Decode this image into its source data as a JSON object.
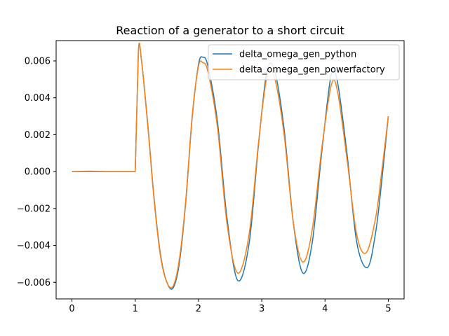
{
  "chart_data": {
    "type": "line",
    "title": "Reaction of a generator to a short circuit",
    "xlabel": "",
    "ylabel": "",
    "xlim": [
      -0.25,
      5.25
    ],
    "ylim": [
      -0.0069,
      0.0071
    ],
    "xticks": [
      0,
      1,
      2,
      3,
      4,
      5
    ],
    "xtick_labels": [
      "0",
      "1",
      "2",
      "3",
      "4",
      "5"
    ],
    "yticks": [
      -0.006,
      -0.004,
      -0.002,
      0.0,
      0.002,
      0.004,
      0.006
    ],
    "ytick_labels": [
      "−0.006",
      "−0.004",
      "−0.002",
      "0.000",
      "0.002",
      "0.004",
      "0.006"
    ],
    "grid": false,
    "legend": "upper right",
    "series": [
      {
        "name": "delta_omega_gen_python",
        "color": "#1f77b4",
        "x": [
          0,
          0.3,
          0.6,
          1.0,
          1.05,
          1.1,
          1.2,
          1.3,
          1.4,
          1.5,
          1.6,
          1.7,
          1.8,
          1.9,
          2.0,
          2.07,
          2.15,
          2.3,
          2.45,
          2.62,
          2.8,
          2.95,
          3.08,
          3.2,
          3.35,
          3.5,
          3.65,
          3.8,
          3.95,
          4.1,
          4.2,
          4.35,
          4.5,
          4.67,
          4.8,
          4.9,
          5.0
        ],
        "y": [
          0.0,
          2e-05,
          0.0,
          0.0,
          0.0065,
          0.006,
          0.0025,
          -0.0015,
          -0.0045,
          -0.006,
          -0.0063,
          -0.0049,
          -0.0016,
          0.0029,
          0.0058,
          0.0062,
          0.0057,
          0.0027,
          -0.0025,
          -0.0059,
          -0.0039,
          0.0015,
          0.0054,
          0.0055,
          0.0024,
          -0.0028,
          -0.0055,
          -0.0038,
          0.0011,
          0.0053,
          0.0048,
          0.0009,
          -0.0038,
          -0.0052,
          -0.0033,
          -0.0004,
          0.003
        ]
      },
      {
        "name": "delta_omega_gen_powerfactory",
        "color": "#ff7f0e",
        "x": [
          0,
          0.3,
          0.6,
          1.0,
          1.05,
          1.1,
          1.2,
          1.3,
          1.4,
          1.5,
          1.6,
          1.7,
          1.8,
          1.9,
          2.0,
          2.07,
          2.15,
          2.3,
          2.45,
          2.62,
          2.8,
          2.95,
          3.08,
          3.2,
          3.35,
          3.5,
          3.65,
          3.8,
          3.95,
          4.1,
          4.2,
          4.35,
          4.5,
          4.65,
          4.8,
          4.9,
          5.0
        ],
        "y": [
          0.0,
          0.0,
          0.0,
          0.0,
          0.0065,
          0.006,
          0.0024,
          -0.0016,
          -0.0046,
          -0.006,
          -0.0062,
          -0.0047,
          -0.0015,
          0.003,
          0.0057,
          0.0059,
          0.0054,
          0.0024,
          -0.0028,
          -0.0055,
          -0.0034,
          0.0016,
          0.0051,
          0.0051,
          0.0021,
          -0.0028,
          -0.0049,
          -0.0031,
          0.0013,
          0.0047,
          0.0043,
          0.0006,
          -0.0034,
          -0.0044,
          -0.0025,
          0.0001,
          0.003
        ]
      }
    ]
  }
}
